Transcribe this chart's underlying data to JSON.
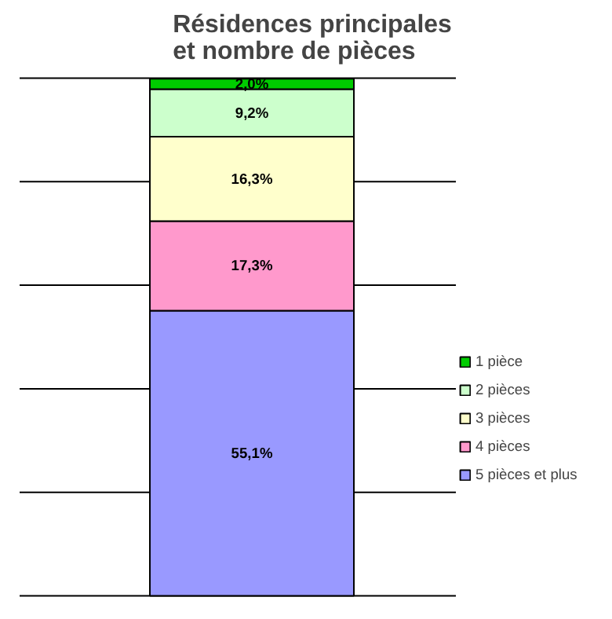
{
  "chart_data": {
    "type": "bar",
    "stacked": true,
    "title": "Résidences principales et nombre de pièces",
    "categories": [
      null
    ],
    "series": [
      {
        "name": "5 pièces et plus",
        "color": "#9999ff",
        "values": [
          55.1
        ],
        "value_labels": [
          "55,1%"
        ]
      },
      {
        "name": "4 pièces",
        "color": "#ff99cc",
        "values": [
          17.3
        ],
        "value_labels": [
          "17,3%"
        ]
      },
      {
        "name": "3 pièces",
        "color": "#ffffcc",
        "values": [
          16.3
        ],
        "value_labels": [
          "16,3%"
        ]
      },
      {
        "name": "2 pièces",
        "color": "#ccffcc",
        "values": [
          9.2
        ],
        "value_labels": [
          "9,2%"
        ]
      },
      {
        "name": "1 pièce",
        "color": "#00cc00",
        "values": [
          2.0
        ],
        "value_labels": [
          "2,0%"
        ]
      }
    ],
    "ylim": [
      0,
      100
    ],
    "yticks": [
      {
        "value": 0,
        "label": null
      },
      {
        "value": 20,
        "label": null
      },
      {
        "value": 40,
        "label": null
      },
      {
        "value": 60,
        "label": null
      },
      {
        "value": 80,
        "label": null
      },
      {
        "value": 100,
        "label": null
      }
    ],
    "grid": "y",
    "legend": "right",
    "tick_labels": false
  }
}
